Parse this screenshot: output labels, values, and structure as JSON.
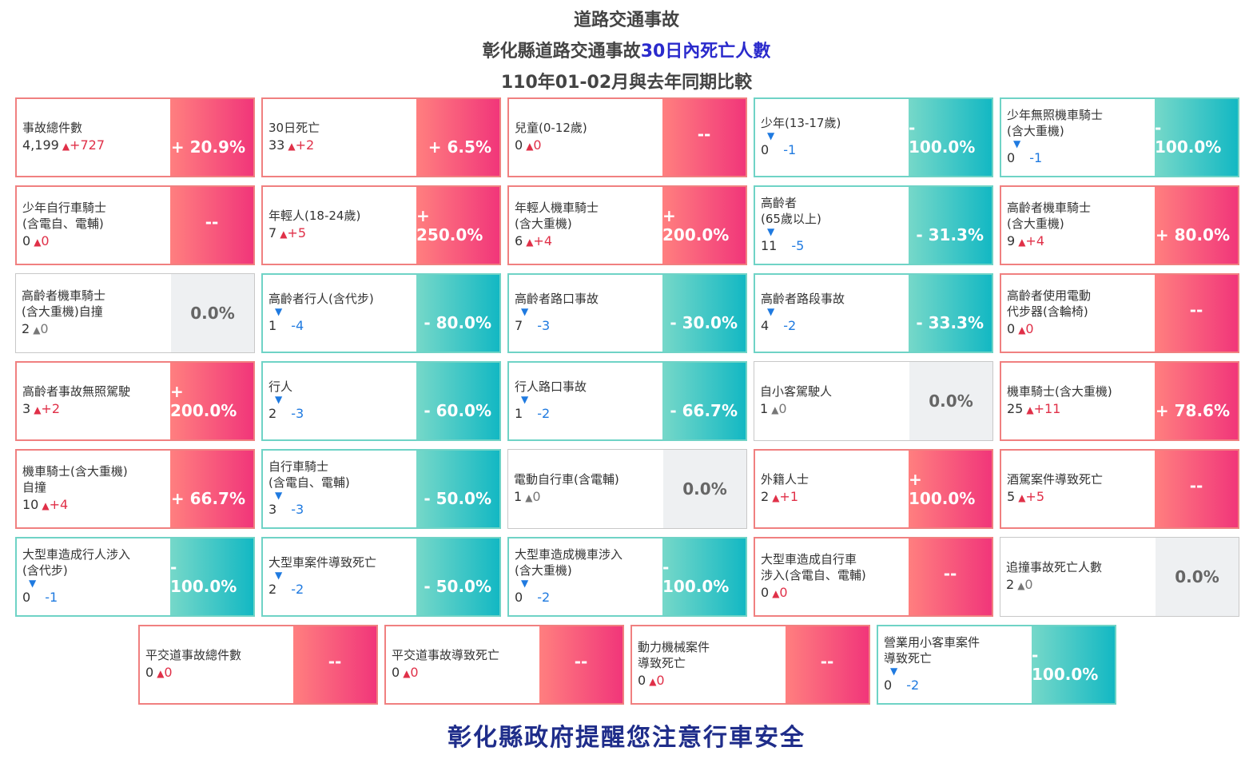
{
  "header": {
    "title": "道路交通事故",
    "subtitle_pre": "彰化縣道路交通事故",
    "subtitle_accent": "30日內死亡人數",
    "period": "110年01-02月與去年同期比較"
  },
  "footer": "彰化縣政府提醒您注意行車安全",
  "colors": {
    "up_gradient": [
      "#ff7f7f",
      "#f1367a"
    ],
    "down_gradient": [
      "#76d8c9",
      "#13b8c3"
    ],
    "flat_bg": "#eef0f2",
    "footer": "#1f2d8a"
  },
  "cards": [
    {
      "label": "事故總件數",
      "value": "4,199",
      "arrow": "▲",
      "delta": "+727",
      "pct": "+ 20.9%",
      "trend": "up"
    },
    {
      "label": "30日死亡",
      "value": "33",
      "arrow": "▲",
      "delta": "+2",
      "pct": "+ 6.5%",
      "trend": "up"
    },
    {
      "label": "兒童(0-12歲)",
      "value": "0",
      "arrow": "▲",
      "delta": "0",
      "pct": "--",
      "trend": "up"
    },
    {
      "label": "少年(13-17歲)",
      "value": "0",
      "arrow": "▼",
      "delta": "-1",
      "pct": "- 100.0%",
      "trend": "down"
    },
    {
      "label": "少年無照機車騎士\n(含大重機)",
      "value": "0",
      "arrow": "▼",
      "delta": "-1",
      "pct": "- 100.0%",
      "trend": "down"
    },
    {
      "label": "少年自行車騎士\n(含電自、電輔)",
      "value": "0",
      "arrow": "▲",
      "delta": "0",
      "pct": "--",
      "trend": "up"
    },
    {
      "label": "年輕人(18-24歲)",
      "value": "7",
      "arrow": "▲",
      "delta": "+5",
      "pct": "+ 250.0%",
      "trend": "up"
    },
    {
      "label": "年輕人機車騎士\n(含大重機)",
      "value": "6",
      "arrow": "▲",
      "delta": "+4",
      "pct": "+ 200.0%",
      "trend": "up"
    },
    {
      "label": "高齡者\n(65歲以上)",
      "value": "11",
      "arrow": "▼",
      "delta": "-5",
      "pct": "- 31.3%",
      "trend": "down"
    },
    {
      "label": "高齡者機車騎士\n(含大重機)",
      "value": "9",
      "arrow": "▲",
      "delta": "+4",
      "pct": "+ 80.0%",
      "trend": "up"
    },
    {
      "label": "高齡者機車騎士\n(含大重機)自撞",
      "value": "2",
      "arrow": "▲",
      "delta": "0",
      "pct": "0.0%",
      "trend": "flat"
    },
    {
      "label": "高齡者行人(含代步)",
      "value": "1",
      "arrow": "▼",
      "delta": "-4",
      "pct": "- 80.0%",
      "trend": "down"
    },
    {
      "label": "高齡者路口事故",
      "value": "7",
      "arrow": "▼",
      "delta": "-3",
      "pct": "- 30.0%",
      "trend": "down"
    },
    {
      "label": "高齡者路段事故",
      "value": "4",
      "arrow": "▼",
      "delta": "-2",
      "pct": "- 33.3%",
      "trend": "down"
    },
    {
      "label": "高齡者使用電動\n代步器(含輪椅)",
      "value": "0",
      "arrow": "▲",
      "delta": "0",
      "pct": "--",
      "trend": "up"
    },
    {
      "label": "高齡者事故無照駕駛",
      "value": "3",
      "arrow": "▲",
      "delta": "+2",
      "pct": "+ 200.0%",
      "trend": "up"
    },
    {
      "label": "行人",
      "value": "2",
      "arrow": "▼",
      "delta": "-3",
      "pct": "- 60.0%",
      "trend": "down"
    },
    {
      "label": "行人路口事故",
      "value": "1",
      "arrow": "▼",
      "delta": "-2",
      "pct": "- 66.7%",
      "trend": "down"
    },
    {
      "label": "自小客駕駛人",
      "value": "1",
      "arrow": "▲",
      "delta": "0",
      "pct": "0.0%",
      "trend": "flat"
    },
    {
      "label": "機車騎士(含大重機)",
      "value": "25",
      "arrow": "▲",
      "delta": "+11",
      "pct": "+ 78.6%",
      "trend": "up"
    },
    {
      "label": "機車騎士(含大重機)\n自撞",
      "value": "10",
      "arrow": "▲",
      "delta": "+4",
      "pct": "+ 66.7%",
      "trend": "up"
    },
    {
      "label": "自行車騎士\n(含電自、電輔)",
      "value": "3",
      "arrow": "▼",
      "delta": "-3",
      "pct": "- 50.0%",
      "trend": "down"
    },
    {
      "label": "電動自行車(含電輔)",
      "value": "1",
      "arrow": "▲",
      "delta": "0",
      "pct": "0.0%",
      "trend": "flat"
    },
    {
      "label": "外籍人士",
      "value": "2",
      "arrow": "▲",
      "delta": "+1",
      "pct": "+ 100.0%",
      "trend": "up"
    },
    {
      "label": "酒駕案件導致死亡",
      "value": "5",
      "arrow": "▲",
      "delta": "+5",
      "pct": "--",
      "trend": "up"
    },
    {
      "label": "大型車造成行人涉入\n(含代步)",
      "value": "0",
      "arrow": "▼",
      "delta": "-1",
      "pct": "- 100.0%",
      "trend": "down"
    },
    {
      "label": "大型車案件導致死亡",
      "value": "2",
      "arrow": "▼",
      "delta": "-2",
      "pct": "- 50.0%",
      "trend": "down"
    },
    {
      "label": "大型車造成機車涉入\n(含大重機)",
      "value": "0",
      "arrow": "▼",
      "delta": "-2",
      "pct": "- 100.0%",
      "trend": "down"
    },
    {
      "label": "大型車造成自行車\n涉入(含電自、電輔)",
      "value": "0",
      "arrow": "▲",
      "delta": "0",
      "pct": "--",
      "trend": "up"
    },
    {
      "label": "追撞事故死亡人數",
      "value": "2",
      "arrow": "▲",
      "delta": "0",
      "pct": "0.0%",
      "trend": "flat"
    }
  ],
  "bottom_cards": [
    {
      "label": "平交道事故總件數",
      "value": "0",
      "arrow": "▲",
      "delta": "0",
      "pct": "--",
      "trend": "up"
    },
    {
      "label": "平交道事故導致死亡",
      "value": "0",
      "arrow": "▲",
      "delta": "0",
      "pct": "--",
      "trend": "up"
    },
    {
      "label": "動力機械案件\n導致死亡",
      "value": "0",
      "arrow": "▲",
      "delta": "0",
      "pct": "--",
      "trend": "up"
    },
    {
      "label": "營業用小客車案件\n導致死亡",
      "value": "0",
      "arrow": "▼",
      "delta": "-2",
      "pct": "- 100.0%",
      "trend": "down"
    }
  ]
}
